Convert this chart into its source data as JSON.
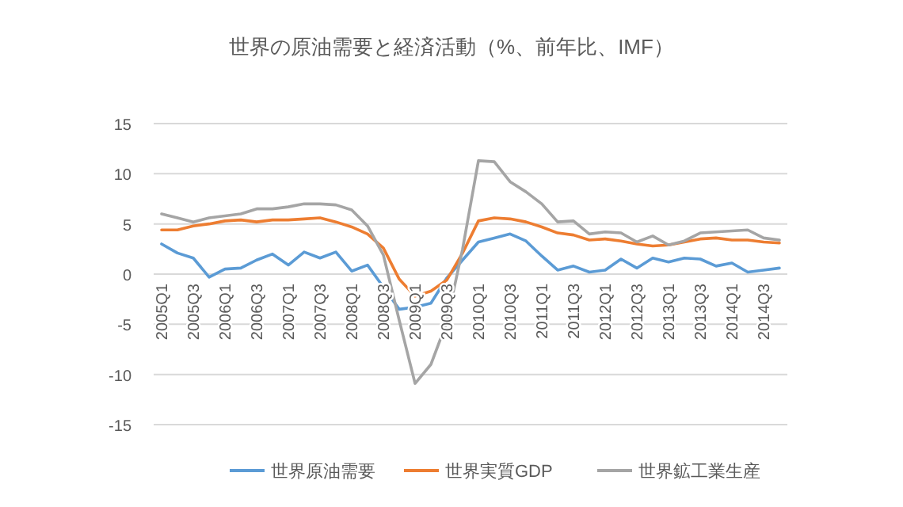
{
  "chart_data": {
    "type": "line",
    "title": "世界の原油需要と経済活動（%、前年比、IMF）",
    "categories": [
      "2005Q1",
      null,
      "2005Q3",
      null,
      "2006Q1",
      null,
      "2006Q3",
      null,
      "2007Q1",
      null,
      "2007Q3",
      null,
      "2008Q1",
      null,
      "2008Q3",
      null,
      "2009Q1",
      null,
      "2009Q3",
      null,
      "2010Q1",
      null,
      "2010Q3",
      null,
      "2011Q1",
      null,
      "2011Q3",
      null,
      "2012Q1",
      null,
      "2012Q3",
      null,
      "2013Q1",
      null,
      "2013Q3",
      null,
      "2014Q1",
      null,
      "2014Q3",
      null
    ],
    "series": [
      {
        "name": "世界原油需要",
        "color": "#5b9bd5",
        "values": [
          3.0,
          2.1,
          1.6,
          -0.3,
          0.5,
          0.6,
          1.4,
          2.0,
          0.9,
          2.2,
          1.6,
          2.2,
          0.3,
          0.9,
          -1.3,
          -3.5,
          -3.3,
          -2.9,
          -0.4,
          1.4,
          3.2,
          3.6,
          4.0,
          3.3,
          1.8,
          0.4,
          0.8,
          0.2,
          0.4,
          1.5,
          0.6,
          1.6,
          1.2,
          1.6,
          1.5,
          0.8,
          1.1,
          0.2,
          0.4,
          0.6
        ]
      },
      {
        "name": "世界実質GDP",
        "color": "#ed7d31",
        "values": [
          4.4,
          4.4,
          4.8,
          5.0,
          5.3,
          5.4,
          5.2,
          5.4,
          5.4,
          5.5,
          5.6,
          5.2,
          4.7,
          4.0,
          2.6,
          -0.5,
          -2.2,
          -1.7,
          -0.6,
          2.1,
          5.3,
          5.6,
          5.5,
          5.2,
          4.7,
          4.1,
          3.9,
          3.4,
          3.5,
          3.3,
          3.0,
          2.8,
          2.9,
          3.2,
          3.5,
          3.6,
          3.4,
          3.4,
          3.2,
          3.1
        ]
      },
      {
        "name": "世界鉱工業生産",
        "color": "#a5a5a5",
        "values": [
          6.0,
          5.6,
          5.2,
          5.6,
          5.8,
          6.0,
          6.5,
          6.5,
          6.7,
          7.0,
          7.0,
          6.9,
          6.4,
          4.8,
          1.9,
          -4.6,
          -10.9,
          -9.0,
          -4.8,
          2.5,
          11.3,
          11.2,
          9.2,
          8.2,
          7.0,
          5.2,
          5.3,
          4.0,
          4.2,
          4.1,
          3.2,
          3.8,
          2.9,
          3.3,
          4.1,
          4.2,
          4.3,
          4.4,
          3.6,
          3.4
        ]
      }
    ],
    "ylim": [
      -15,
      15
    ],
    "yticks": [
      -15,
      -10,
      -5,
      0,
      5,
      10,
      15
    ],
    "grid": "y",
    "legend": "bottom",
    "marker": "none",
    "line_style": "solid"
  }
}
